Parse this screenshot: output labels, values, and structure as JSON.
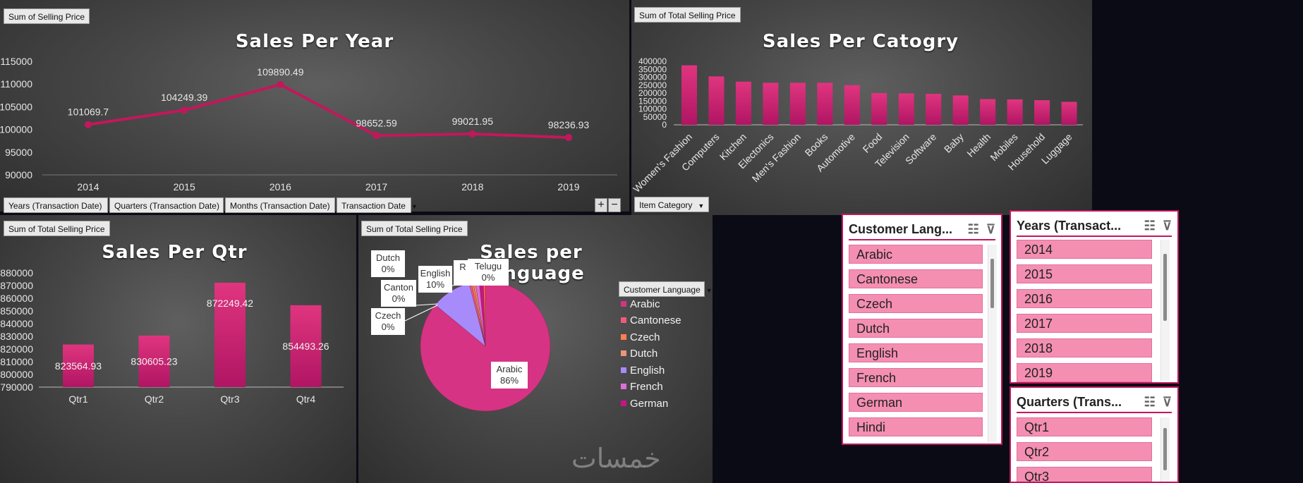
{
  "colors": {
    "accent": "#c2185b",
    "bar": "#d63384",
    "slicer_item": "#f48fb1"
  },
  "year_chart": {
    "value_button": "Sum of Selling Price",
    "title": "Sales Per Year",
    "field_buttons": [
      "Years (Transaction Date)",
      "Quarters (Transaction Date)",
      "Months (Transaction Date)",
      "Transaction Date"
    ],
    "zoom_plus": "+",
    "zoom_minus": "−"
  },
  "category_chart": {
    "value_button": "Sum of Total Selling Price",
    "title": "Sales Per Catogry",
    "field_button": "Item Category"
  },
  "qtr_chart": {
    "value_button": "Sum of Total Selling Price",
    "title": "Sales Per Qtr"
  },
  "language_chart": {
    "value_button": "Sum of Total Selling Price",
    "title": "Sales per Language",
    "legend_button": "Customer Language",
    "callouts": [
      {
        "name": "Dutch",
        "value": "0%"
      },
      {
        "name": "English",
        "value": "10%"
      },
      {
        "name": "Canton",
        "value": "0%"
      },
      {
        "name": "Czech",
        "value": "0%"
      },
      {
        "name": "Telugu",
        "value": "0%"
      },
      {
        "name": "Arabic",
        "value": "86%"
      }
    ],
    "callout_partial": "R"
  },
  "chart_data": [
    {
      "type": "line",
      "title": "Sales Per Year",
      "x": [
        "2014",
        "2015",
        "2016",
        "2017",
        "2018",
        "2019"
      ],
      "series": [
        {
          "values": [
            101069.7,
            104249.39,
            109890.49,
            98652.59,
            99021.95,
            98236.93
          ]
        }
      ],
      "data_labels": [
        "101069.7",
        "104249.39",
        "109890.49",
        "98652.59",
        "99021.95",
        "98236.93"
      ],
      "ylim": [
        90000,
        115000
      ],
      "yticks": [
        "115000",
        "110000",
        "105000",
        "100000",
        "95000",
        "90000"
      ]
    },
    {
      "type": "bar",
      "title": "Sales Per Catogry",
      "categories": [
        "Women's Fashion",
        "Computers",
        "Kitchen",
        "Electonics",
        "Men's Fashion",
        "Books",
        "Automotive",
        "Food",
        "Television",
        "Software",
        "Baby",
        "Health",
        "Mobiles",
        "Household",
        "Luggage"
      ],
      "values": [
        375000,
        305000,
        272000,
        265000,
        265000,
        265000,
        250000,
        200000,
        198000,
        195000,
        185000,
        162000,
        160000,
        155000,
        145000
      ],
      "ylim": [
        0,
        400000
      ],
      "yticks": [
        "400000",
        "350000",
        "300000",
        "250000",
        "200000",
        "150000",
        "100000",
        "50000",
        "0"
      ]
    },
    {
      "type": "bar",
      "title": "Sales Per Qtr",
      "categories": [
        "Qtr1",
        "Qtr2",
        "Qtr3",
        "Qtr4"
      ],
      "values": [
        823564.93,
        830605.23,
        872249.42,
        854493.26
      ],
      "data_labels": [
        "823564.93",
        "830605.23",
        "872249.42",
        "854493.26"
      ],
      "ylim": [
        790000,
        880000
      ],
      "yticks": [
        "880000",
        "870000",
        "860000",
        "850000",
        "840000",
        "830000",
        "820000",
        "810000",
        "800000",
        "790000"
      ]
    },
    {
      "type": "pie",
      "title": "Sales per Language",
      "labels": [
        "Arabic",
        "English",
        "Cantonese",
        "Czech",
        "Dutch",
        "French",
        "German",
        "Telugu"
      ],
      "values": [
        86,
        10,
        0.5,
        0.5,
        0.5,
        1,
        1,
        0.5
      ],
      "colors": [
        "#d63384",
        "#a78bfa",
        "#ef5b7f",
        "#ff7f50",
        "#e9967a",
        "#da70d6",
        "#c71585",
        "#ff6347"
      ]
    }
  ],
  "legend": {
    "items": [
      {
        "label": "Arabic",
        "color": "#d63384"
      },
      {
        "label": "Cantonese",
        "color": "#ef5b7f"
      },
      {
        "label": "Czech",
        "color": "#ff7f50"
      },
      {
        "label": "Dutch",
        "color": "#e9967a"
      },
      {
        "label": "English",
        "color": "#a78bfa"
      },
      {
        "label": "French",
        "color": "#da70d6"
      },
      {
        "label": "German",
        "color": "#c71585"
      }
    ]
  },
  "slicers": {
    "language": {
      "title": "Customer Lang...",
      "items": [
        "Arabic",
        "Cantonese",
        "Czech",
        "Dutch",
        "English",
        "French",
        "German",
        "Hindi"
      ]
    },
    "years": {
      "title": "Years (Transact...",
      "items": [
        "2014",
        "2015",
        "2016",
        "2017",
        "2018",
        "2019"
      ]
    },
    "quarters": {
      "title": "Quarters (Trans...",
      "items": [
        "Qtr1",
        "Qtr2",
        "Qtr3"
      ]
    }
  },
  "icons": {
    "multi_select": "multi-select-icon",
    "clear_filter": "clear-filter-icon"
  },
  "watermark": "خمسات"
}
